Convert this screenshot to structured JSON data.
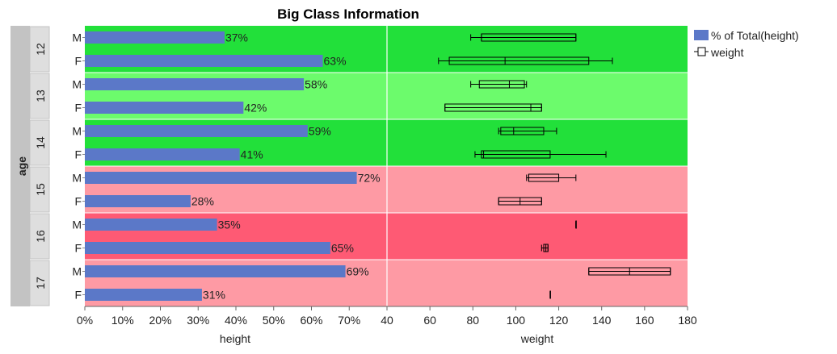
{
  "chart_data": {
    "type": "bar",
    "title": "Big Class Information",
    "group_axis_label": "age",
    "groups": [
      "12",
      "13",
      "14",
      "15",
      "16",
      "17"
    ],
    "categories": [
      "M",
      "F"
    ],
    "group_band_colors": [
      "#22e03a",
      "#6cfb6c",
      "#22e03a",
      "#fe9aa4",
      "#fe5a74",
      "#fe9aa4"
    ],
    "left_panel": {
      "type": "bar",
      "xlabel": "height",
      "xlim": [
        0,
        80
      ],
      "xticks": [
        "0%",
        "10%",
        "20%",
        "30%",
        "40%",
        "50%",
        "60%",
        "70%"
      ],
      "bar_color": "#5b78c8",
      "series": [
        {
          "name": "% of Total(height)",
          "values": [
            {
              "group": "12",
              "category": "M",
              "value": 37,
              "label": "37%"
            },
            {
              "group": "12",
              "category": "F",
              "value": 63,
              "label": "63%"
            },
            {
              "group": "13",
              "category": "M",
              "value": 58,
              "label": "58%"
            },
            {
              "group": "13",
              "category": "F",
              "value": 42,
              "label": "42%"
            },
            {
              "group": "14",
              "category": "M",
              "value": 59,
              "label": "59%"
            },
            {
              "group": "14",
              "category": "F",
              "value": 41,
              "label": "41%"
            },
            {
              "group": "15",
              "category": "M",
              "value": 72,
              "label": "72%"
            },
            {
              "group": "15",
              "category": "F",
              "value": 28,
              "label": "28%"
            },
            {
              "group": "16",
              "category": "M",
              "value": 35,
              "label": "35%"
            },
            {
              "group": "16",
              "category": "F",
              "value": 65,
              "label": "65%"
            },
            {
              "group": "17",
              "category": "M",
              "value": 69,
              "label": "69%"
            },
            {
              "group": "17",
              "category": "F",
              "value": 31,
              "label": "31%"
            }
          ]
        }
      ]
    },
    "right_panel": {
      "type": "boxplot",
      "xlabel": "weight",
      "xlim": [
        40,
        180
      ],
      "xticks": [
        "40",
        "60",
        "80",
        "100",
        "120",
        "140",
        "160",
        "180"
      ],
      "series": [
        {
          "name": "weight",
          "boxes": [
            {
              "group": "12",
              "category": "M",
              "min": 79,
              "q1": 84,
              "median": 84,
              "q3": 128,
              "max": 128
            },
            {
              "group": "12",
              "category": "F",
              "min": 64,
              "q1": 69,
              "median": 95,
              "q3": 134,
              "max": 145
            },
            {
              "group": "13",
              "category": "M",
              "min": 79,
              "q1": 83,
              "median": 97,
              "q3": 104,
              "max": 105
            },
            {
              "group": "13",
              "category": "F",
              "min": 67,
              "q1": 67,
              "median": 107,
              "q3": 112,
              "max": 112
            },
            {
              "group": "14",
              "category": "M",
              "min": 92,
              "q1": 93,
              "median": 99,
              "q3": 113,
              "max": 119
            },
            {
              "group": "14",
              "category": "F",
              "min": 81,
              "q1": 84,
              "median": 85,
              "q3": 116,
              "max": 142
            },
            {
              "group": "15",
              "category": "M",
              "min": 105,
              "q1": 106,
              "median": 106,
              "q3": 120,
              "max": 128
            },
            {
              "group": "15",
              "category": "F",
              "min": 92,
              "q1": 92,
              "median": 102,
              "q3": 112,
              "max": 112
            },
            {
              "group": "16",
              "category": "M",
              "min": 128,
              "q1": 128,
              "median": 128,
              "q3": 128,
              "max": 128
            },
            {
              "group": "16",
              "category": "F",
              "min": 112,
              "q1": 113,
              "median": 114,
              "q3": 115,
              "max": 115
            },
            {
              "group": "17",
              "category": "M",
              "min": 134,
              "q1": 134,
              "median": 153,
              "q3": 172,
              "max": 172
            },
            {
              "group": "17",
              "category": "F",
              "min": 116,
              "q1": 116,
              "median": 116,
              "q3": 116,
              "max": 116
            }
          ]
        }
      ]
    },
    "legend": {
      "placement": "top-right",
      "entries": [
        {
          "label": "% of Total(height)",
          "marker": "bar",
          "color": "#5b78c8"
        },
        {
          "label": "weight",
          "marker": "box"
        }
      ]
    },
    "grid": false
  }
}
